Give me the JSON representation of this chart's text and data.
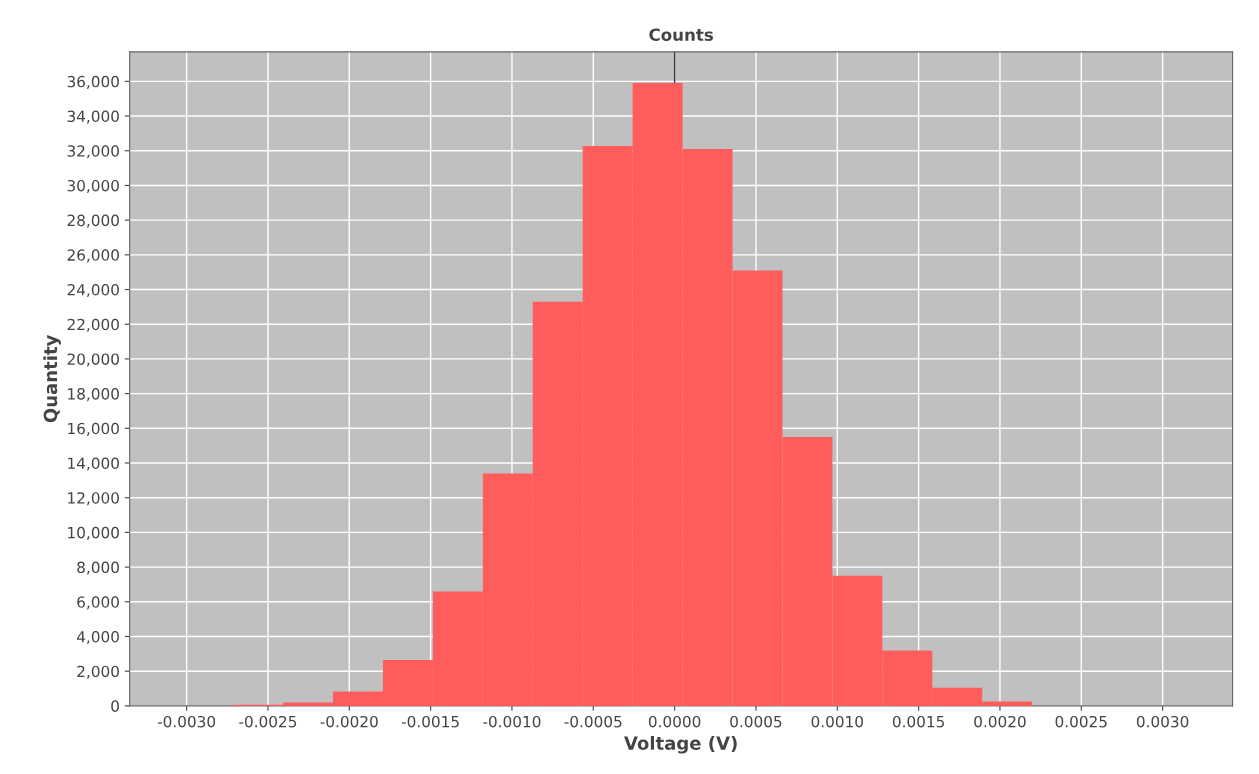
{
  "chart_data": {
    "type": "histogram",
    "title": "Counts",
    "xlabel": "Voltage (V)",
    "ylabel": "Quantity",
    "bins": [
      -0.002714,
      -0.002407,
      -0.0021,
      -0.001793,
      -0.001486,
      -0.001179,
      -0.000872,
      -0.000565,
      -0.000258,
      4.9e-05,
      0.000356,
      0.000663,
      0.00097,
      0.001277,
      0.001584,
      0.001891,
      0.002198
    ],
    "values": [
      60,
      190,
      830,
      2650,
      6600,
      13400,
      23300,
      32270,
      35900,
      32100,
      25100,
      15500,
      7500,
      3190,
      1040,
      250
    ],
    "color": "#ff5c5c",
    "xlim": [
      -0.00335,
      0.00343
    ],
    "xticks": [
      {
        "value": -0.003,
        "label": "-0.0030"
      },
      {
        "value": -0.0025,
        "label": "-0.0025"
      },
      {
        "value": -0.002,
        "label": "-0.0020"
      },
      {
        "value": -0.0015,
        "label": "-0.0015"
      },
      {
        "value": -0.001,
        "label": "-0.0010"
      },
      {
        "value": -0.0005,
        "label": "-0.0005"
      },
      {
        "value": 0,
        "label": "0.0000"
      },
      {
        "value": 0.0005,
        "label": "0.0005"
      },
      {
        "value": 0.001,
        "label": "0.0010"
      },
      {
        "value": 0.0015,
        "label": "0.0015"
      },
      {
        "value": 0.002,
        "label": "0.0020"
      },
      {
        "value": 0.0025,
        "label": "0.0025"
      },
      {
        "value": 0.003,
        "label": "0.0030"
      }
    ],
    "ylim": [
      0,
      37700
    ],
    "yticks": [
      0,
      {
        "value": 2000,
        "label": "2,000"
      },
      {
        "value": 4000,
        "label": "4,000"
      },
      {
        "value": 6000,
        "label": "6,000"
      },
      {
        "value": 8000,
        "label": "8,000"
      },
      {
        "value": 10000,
        "label": "10,000"
      },
      {
        "value": 12000,
        "label": "12,000"
      },
      {
        "value": 14000,
        "label": "14,000"
      },
      {
        "value": 16000,
        "label": "16,000"
      },
      {
        "value": 18000,
        "label": "18,000"
      },
      {
        "value": 20000,
        "label": "20,000"
      },
      {
        "value": 22000,
        "label": "22,000"
      },
      {
        "value": 24000,
        "label": "24,000"
      },
      {
        "value": 26000,
        "label": "26,000"
      },
      {
        "value": 28000,
        "label": "28,000"
      },
      {
        "value": 30000,
        "label": "30,000"
      },
      {
        "value": 32000,
        "label": "32,000"
      },
      {
        "value": 34000,
        "label": "34,000"
      },
      {
        "value": 36000,
        "label": "36,000"
      }
    ],
    "ref_lines": [
      {
        "axis": "x",
        "value": 0,
        "color": "#404040"
      }
    ],
    "grid": true
  }
}
